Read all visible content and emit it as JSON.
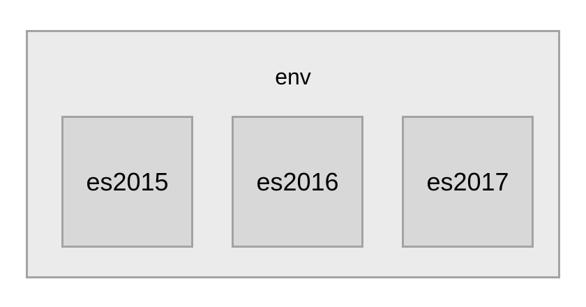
{
  "diagram": {
    "container": {
      "label": "env",
      "background": "#ebebeb",
      "border_color": "#a3a3a3"
    },
    "children": [
      {
        "label": "es2015"
      },
      {
        "label": "es2016"
      },
      {
        "label": "es2017"
      }
    ],
    "child_background": "#d8d8d8"
  }
}
